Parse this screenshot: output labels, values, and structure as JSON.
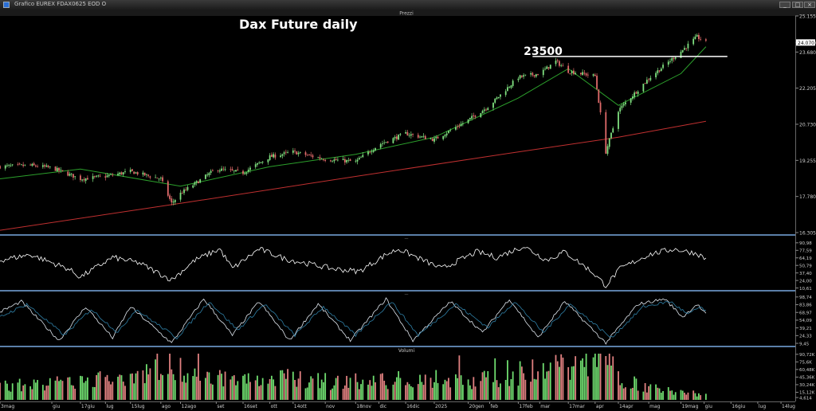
{
  "window": {
    "title": "Grafico EUREX FDAX0625 EOD O",
    "btn_min": "_",
    "btn_max": "□",
    "btn_close": "×"
  },
  "panels": {
    "price": {
      "header": "Prezzi"
    },
    "rsi": {
      "header": "—"
    },
    "stoch": {
      "header": "—"
    },
    "volume": {
      "header": "Volumi"
    }
  },
  "chart_data": {
    "type": "candlestick",
    "title": "Dax Future daily",
    "annotation": {
      "label": "23500",
      "level": 23500
    },
    "price_axis": {
      "ticks": [
        "25.155",
        "24.070",
        "23.680",
        "22.205",
        "20.730",
        "19.255",
        "17.780",
        "16.305"
      ],
      "tick_values": [
        25155,
        24070,
        23680,
        22205,
        20730,
        19255,
        17780,
        16305
      ],
      "range": [
        16305,
        25155
      ],
      "last_price_label": "24.070",
      "last_price": 24070
    },
    "x_axis": {
      "ticks": [
        "3mag",
        "giu",
        "17giu",
        "lug",
        "15lug",
        "ago",
        "12ago",
        "set",
        "16set",
        "ott",
        "14ott",
        "nov",
        "18nov",
        "dic",
        "16dic",
        "2025",
        "20gen",
        "feb",
        "17feb",
        "mar",
        "17mar",
        "apr",
        "14apr",
        "mag",
        "19mag",
        "giu",
        "16giu",
        "lug",
        "14lug"
      ],
      "tick_dates": [
        "2024-05-03",
        "2024-06-01",
        "2024-06-17",
        "2024-07-01",
        "2024-07-15",
        "2024-08-01",
        "2024-08-12",
        "2024-09-01",
        "2024-09-16",
        "2024-10-01",
        "2024-10-14",
        "2024-11-01",
        "2024-11-18",
        "2024-12-01",
        "2024-12-16",
        "2025-01-01",
        "2025-01-20",
        "2025-02-01",
        "2025-02-17",
        "2025-03-01",
        "2025-03-17",
        "2025-04-01",
        "2025-04-14",
        "2025-05-01",
        "2025-05-19",
        "2025-06-01",
        "2025-06-16",
        "2025-07-01",
        "2025-07-14"
      ],
      "range": [
        "2024-05-03",
        "2025-07-22"
      ],
      "data_end": "2025-06-02"
    },
    "price_series": [
      {
        "date": "2024-05-03",
        "close": 19000
      },
      {
        "date": "2024-05-20",
        "close": 19050
      },
      {
        "date": "2024-06-01",
        "close": 18950
      },
      {
        "date": "2024-06-17",
        "close": 18500
      },
      {
        "date": "2024-07-01",
        "close": 18600
      },
      {
        "date": "2024-07-15",
        "close": 18800
      },
      {
        "date": "2024-08-01",
        "close": 18500
      },
      {
        "date": "2024-08-07",
        "close": 17500
      },
      {
        "date": "2024-08-12",
        "close": 17900
      },
      {
        "date": "2024-09-01",
        "close": 18900
      },
      {
        "date": "2024-09-16",
        "close": 18750
      },
      {
        "date": "2024-10-01",
        "close": 19400
      },
      {
        "date": "2024-10-14",
        "close": 19600
      },
      {
        "date": "2024-11-01",
        "close": 19300
      },
      {
        "date": "2024-11-18",
        "close": 19200
      },
      {
        "date": "2024-12-01",
        "close": 19900
      },
      {
        "date": "2024-12-16",
        "close": 20350
      },
      {
        "date": "2025-01-01",
        "close": 20100
      },
      {
        "date": "2025-01-20",
        "close": 20900
      },
      {
        "date": "2025-02-01",
        "close": 21500
      },
      {
        "date": "2025-02-17",
        "close": 22650
      },
      {
        "date": "2025-03-01",
        "close": 22800
      },
      {
        "date": "2025-03-10",
        "close": 23300
      },
      {
        "date": "2025-03-17",
        "close": 22900
      },
      {
        "date": "2025-04-01",
        "close": 22700
      },
      {
        "date": "2025-04-07",
        "close": 19600
      },
      {
        "date": "2025-04-14",
        "close": 21300
      },
      {
        "date": "2025-05-01",
        "close": 22600
      },
      {
        "date": "2025-05-19",
        "close": 23700
      },
      {
        "date": "2025-05-28",
        "close": 24300
      },
      {
        "date": "2025-06-02",
        "close": 24070
      }
    ],
    "moving_averages": [
      {
        "color": "#2ca02c",
        "points": [
          [
            "2024-05-03",
            18500
          ],
          [
            "2024-06-17",
            18900
          ],
          [
            "2024-08-12",
            18200
          ],
          [
            "2024-10-01",
            19000
          ],
          [
            "2024-11-18",
            19500
          ],
          [
            "2025-01-01",
            20200
          ],
          [
            "2025-02-17",
            21800
          ],
          [
            "2025-03-17",
            23000
          ],
          [
            "2025-04-14",
            21500
          ],
          [
            "2025-05-19",
            22800
          ],
          [
            "2025-06-02",
            23900
          ]
        ]
      },
      {
        "color": "#c03030",
        "points": [
          [
            "2024-05-03",
            16400
          ],
          [
            "2024-08-12",
            17500
          ],
          [
            "2024-11-18",
            18600
          ],
          [
            "2025-02-17",
            19600
          ],
          [
            "2025-04-14",
            20200
          ],
          [
            "2025-06-02",
            20850
          ]
        ]
      }
    ],
    "rsi": {
      "ticks": [
        "90,98",
        "77,59",
        "64,19",
        "50,79",
        "37,40",
        "24,00",
        "10,61"
      ],
      "tick_values": [
        90.98,
        77.59,
        64.19,
        50.79,
        37.4,
        24.0,
        10.61
      ],
      "range": [
        10,
        95
      ],
      "points": [
        [
          "2024-05-03",
          60
        ],
        [
          "2024-05-20",
          70
        ],
        [
          "2024-06-10",
          45
        ],
        [
          "2024-06-17",
          30
        ],
        [
          "2024-07-05",
          65
        ],
        [
          "2024-07-20",
          55
        ],
        [
          "2024-08-07",
          25
        ],
        [
          "2024-08-20",
          60
        ],
        [
          "2024-09-03",
          80
        ],
        [
          "2024-09-10",
          45
        ],
        [
          "2024-09-25",
          80
        ],
        [
          "2024-10-10",
          62
        ],
        [
          "2024-11-05",
          45
        ],
        [
          "2024-11-20",
          40
        ],
        [
          "2024-12-05",
          70
        ],
        [
          "2024-12-12",
          80
        ],
        [
          "2025-01-05",
          45
        ],
        [
          "2025-01-25",
          75
        ],
        [
          "2025-02-05",
          65
        ],
        [
          "2025-02-20",
          85
        ],
        [
          "2025-03-05",
          60
        ],
        [
          "2025-03-15",
          75
        ],
        [
          "2025-03-30",
          40
        ],
        [
          "2025-04-07",
          15
        ],
        [
          "2025-04-15",
          45
        ],
        [
          "2025-05-01",
          70
        ],
        [
          "2025-05-15",
          80
        ],
        [
          "2025-05-28",
          72
        ],
        [
          "2025-06-02",
          62
        ]
      ]
    },
    "stochastic": {
      "ticks": [
        "98,74",
        "83,86",
        "68,97",
        "54,09",
        "39,21",
        "24,33",
        "9,45"
      ],
      "tick_values": [
        98.74,
        83.86,
        68.97,
        54.09,
        39.21,
        24.33,
        9.45
      ],
      "range": [
        8,
        100
      ],
      "series": [
        {
          "color": "#dfe6ee",
          "points": [
            [
              "2024-05-03",
              70
            ],
            [
              "2024-05-15",
              90
            ],
            [
              "2024-06-05",
              15
            ],
            [
              "2024-06-20",
              80
            ],
            [
              "2024-07-05",
              20
            ],
            [
              "2024-07-15",
              80
            ],
            [
              "2024-08-07",
              10
            ],
            [
              "2024-08-25",
              95
            ],
            [
              "2024-09-10",
              25
            ],
            [
              "2024-09-25",
              90
            ],
            [
              "2024-10-12",
              15
            ],
            [
              "2024-10-28",
              85
            ],
            [
              "2024-11-15",
              15
            ],
            [
              "2024-12-05",
              95
            ],
            [
              "2024-12-20",
              15
            ],
            [
              "2025-01-10",
              90
            ],
            [
              "2025-01-28",
              30
            ],
            [
              "2025-02-12",
              95
            ],
            [
              "2025-02-28",
              20
            ],
            [
              "2025-03-15",
              90
            ],
            [
              "2025-04-07",
              10
            ],
            [
              "2025-04-25",
              85
            ],
            [
              "2025-05-10",
              95
            ],
            [
              "2025-05-20",
              60
            ],
            [
              "2025-05-28",
              85
            ],
            [
              "2025-06-02",
              65
            ]
          ]
        },
        {
          "color": "#2f7fa6",
          "points": [
            [
              "2024-05-03",
              60
            ],
            [
              "2024-05-18",
              85
            ],
            [
              "2024-06-08",
              25
            ],
            [
              "2024-06-23",
              75
            ],
            [
              "2024-07-08",
              30
            ],
            [
              "2024-07-18",
              75
            ],
            [
              "2024-08-10",
              20
            ],
            [
              "2024-08-28",
              90
            ],
            [
              "2024-09-13",
              35
            ],
            [
              "2024-09-28",
              85
            ],
            [
              "2024-10-15",
              25
            ],
            [
              "2024-10-31",
              80
            ],
            [
              "2024-11-18",
              25
            ],
            [
              "2024-12-08",
              90
            ],
            [
              "2024-12-23",
              25
            ],
            [
              "2025-01-13",
              85
            ],
            [
              "2025-01-31",
              40
            ],
            [
              "2025-02-15",
              90
            ],
            [
              "2025-03-03",
              30
            ],
            [
              "2025-03-18",
              85
            ],
            [
              "2025-04-10",
              20
            ],
            [
              "2025-04-28",
              80
            ],
            [
              "2025-05-13",
              90
            ],
            [
              "2025-05-23",
              65
            ],
            [
              "2025-05-30",
              80
            ],
            [
              "2025-06-02",
              70
            ]
          ]
        }
      ]
    },
    "volume_panel": {
      "ticks": [
        "90,72K",
        "75,6K",
        "60,48K",
        "45,36K",
        "30,24K",
        "15,12K",
        "4,614"
      ],
      "tick_values": [
        90720,
        75600,
        60480,
        45360,
        30240,
        15120,
        4614
      ],
      "range": [
        0,
        92000
      ],
      "points": [
        [
          "2024-05-03",
          30000
        ],
        [
          "2024-06-17",
          35000
        ],
        [
          "2024-08-07",
          70000
        ],
        [
          "2024-09-16",
          40000
        ],
        [
          "2024-10-14",
          45000
        ],
        [
          "2024-11-18",
          35000
        ],
        [
          "2024-12-16",
          42000
        ],
        [
          "2025-01-20",
          40000
        ],
        [
          "2025-02-17",
          55000
        ],
        [
          "2025-03-10",
          70000
        ],
        [
          "2025-04-07",
          90000
        ],
        [
          "2025-04-14",
          50000
        ],
        [
          "2025-05-01",
          25000
        ],
        [
          "2025-05-19",
          15000
        ],
        [
          "2025-06-02",
          12000
        ]
      ]
    }
  }
}
